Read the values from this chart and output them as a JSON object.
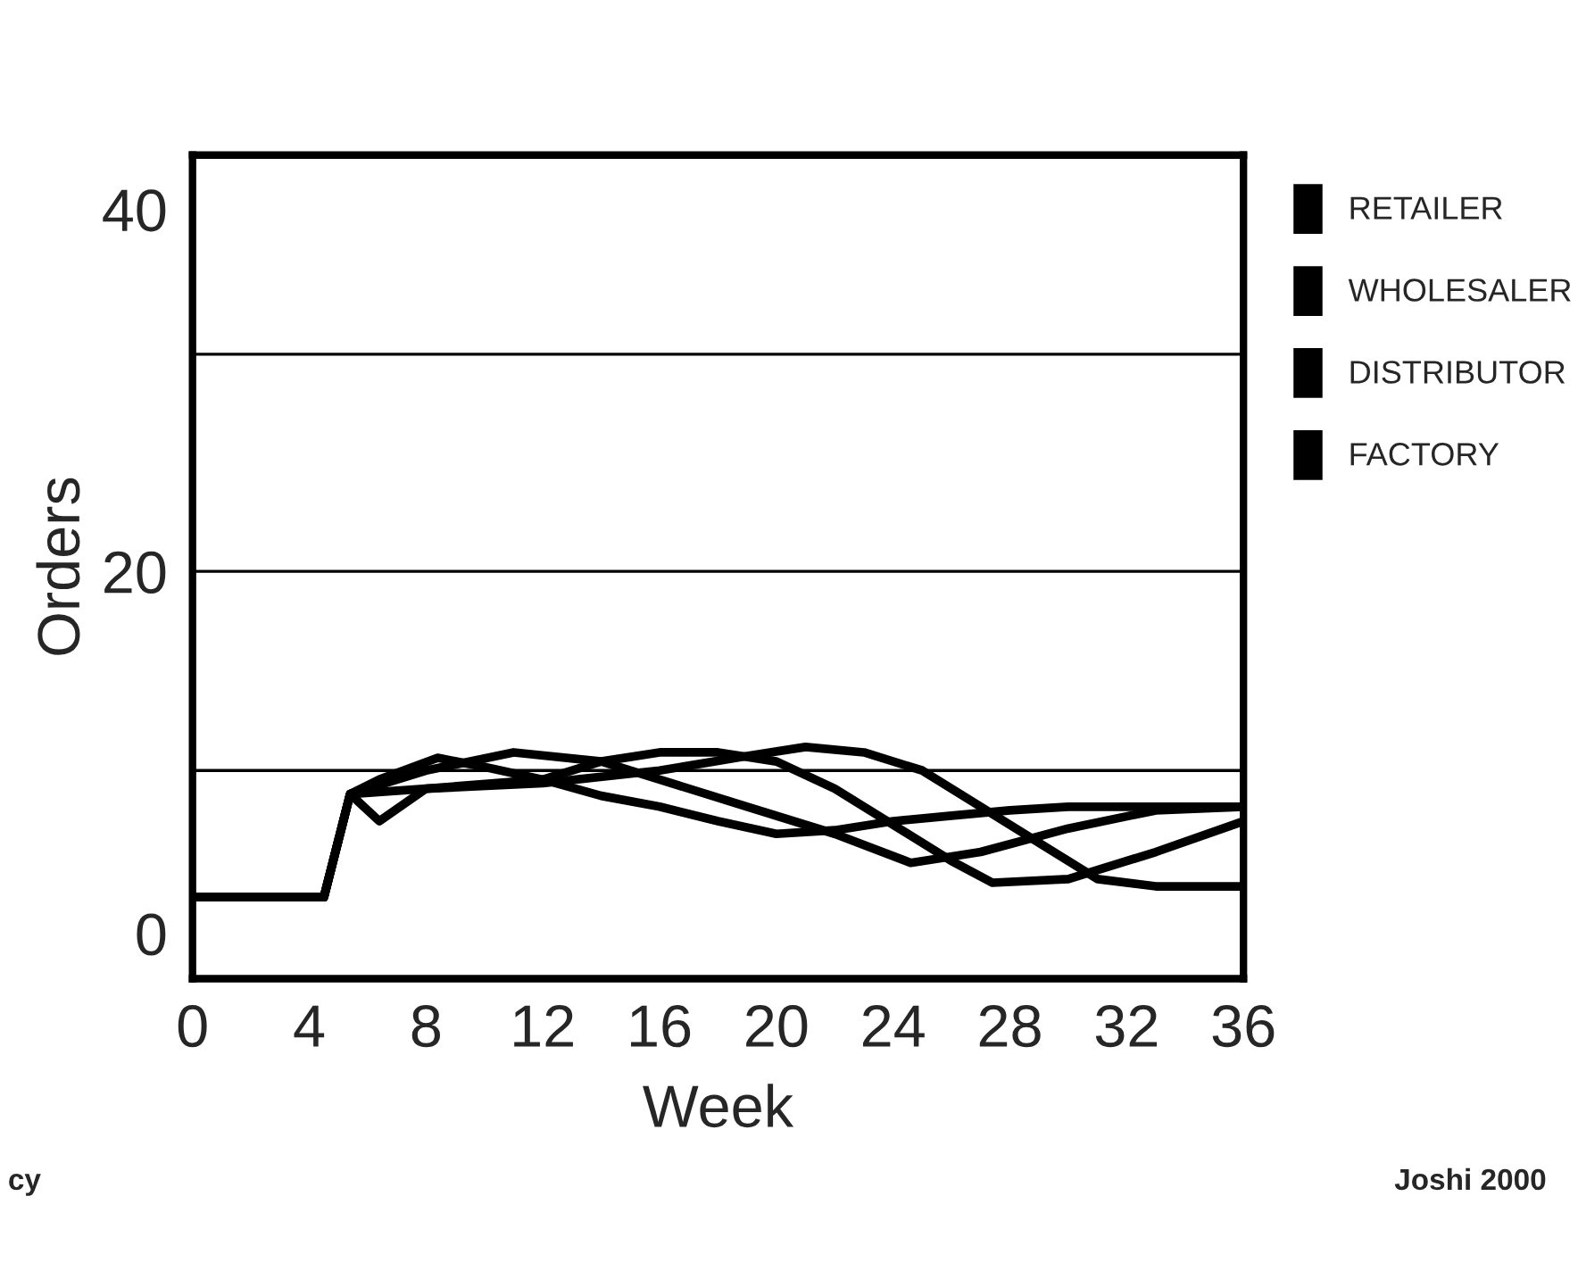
{
  "chart_data": {
    "type": "line",
    "xlabel": "Week",
    "ylabel": "Orders",
    "xlim": [
      0,
      36
    ],
    "xticks": [
      0,
      4,
      8,
      12,
      16,
      20,
      24,
      28,
      32,
      36
    ],
    "ylim": [
      -2.5,
      43
    ],
    "yticks": [
      0,
      20,
      40
    ],
    "grid": false,
    "legend": "top right",
    "marker": "none",
    "line_style": "solid",
    "ref_lines": [
      {
        "axis": "y",
        "value": 32
      },
      {
        "axis": "y",
        "value": 20
      },
      {
        "axis": "y",
        "value": 9
      }
    ],
    "annotations": [
      "cy",
      "Joshi 2000"
    ],
    "series": [
      {
        "name": "RETAILER",
        "color": "#000000",
        "x": [
          0,
          4.5,
          5.4,
          6.4,
          8.4,
          10,
          12,
          14,
          16,
          18,
          20,
          22,
          24,
          26,
          28,
          30,
          32,
          34,
          36
        ],
        "values": [
          2,
          2,
          7.7,
          8.5,
          9.7,
          9.2,
          8.5,
          7.6,
          7,
          6.2,
          5.5,
          5.7,
          6.2,
          6.5,
          6.8,
          7,
          7,
          7,
          7
        ]
      },
      {
        "name": "WHOLESALER",
        "color": "#000000",
        "x": [
          0,
          4.5,
          5.4,
          8,
          11,
          14,
          16,
          19,
          22,
          24.6,
          27,
          30,
          33,
          36
        ],
        "values": [
          2,
          2,
          7.7,
          9,
          10,
          9.5,
          8.5,
          7,
          5.5,
          3.9,
          4.5,
          5.8,
          6.8,
          7
        ]
      },
      {
        "name": "DISTRIBUTOR",
        "color": "#000000",
        "x": [
          0,
          4.5,
          5.4,
          6.4,
          8,
          12,
          14,
          16,
          18,
          20,
          22,
          24,
          26,
          27.4,
          30,
          33,
          36
        ],
        "values": [
          2,
          2,
          7.7,
          6.2,
          8,
          8.5,
          9.5,
          10,
          10,
          9.5,
          8,
          6,
          4,
          2.8,
          3,
          4.5,
          6.2
        ]
      },
      {
        "name": "FACTORY",
        "color": "#000000",
        "x": [
          0,
          4.5,
          5.4,
          8,
          12,
          16,
          19,
          21,
          23,
          25,
          27,
          29,
          31,
          33,
          36
        ],
        "values": [
          2,
          2,
          7.7,
          8,
          8.3,
          9,
          9.8,
          10.3,
          10,
          9,
          7,
          5,
          3,
          2.6,
          2.6
        ]
      }
    ]
  }
}
